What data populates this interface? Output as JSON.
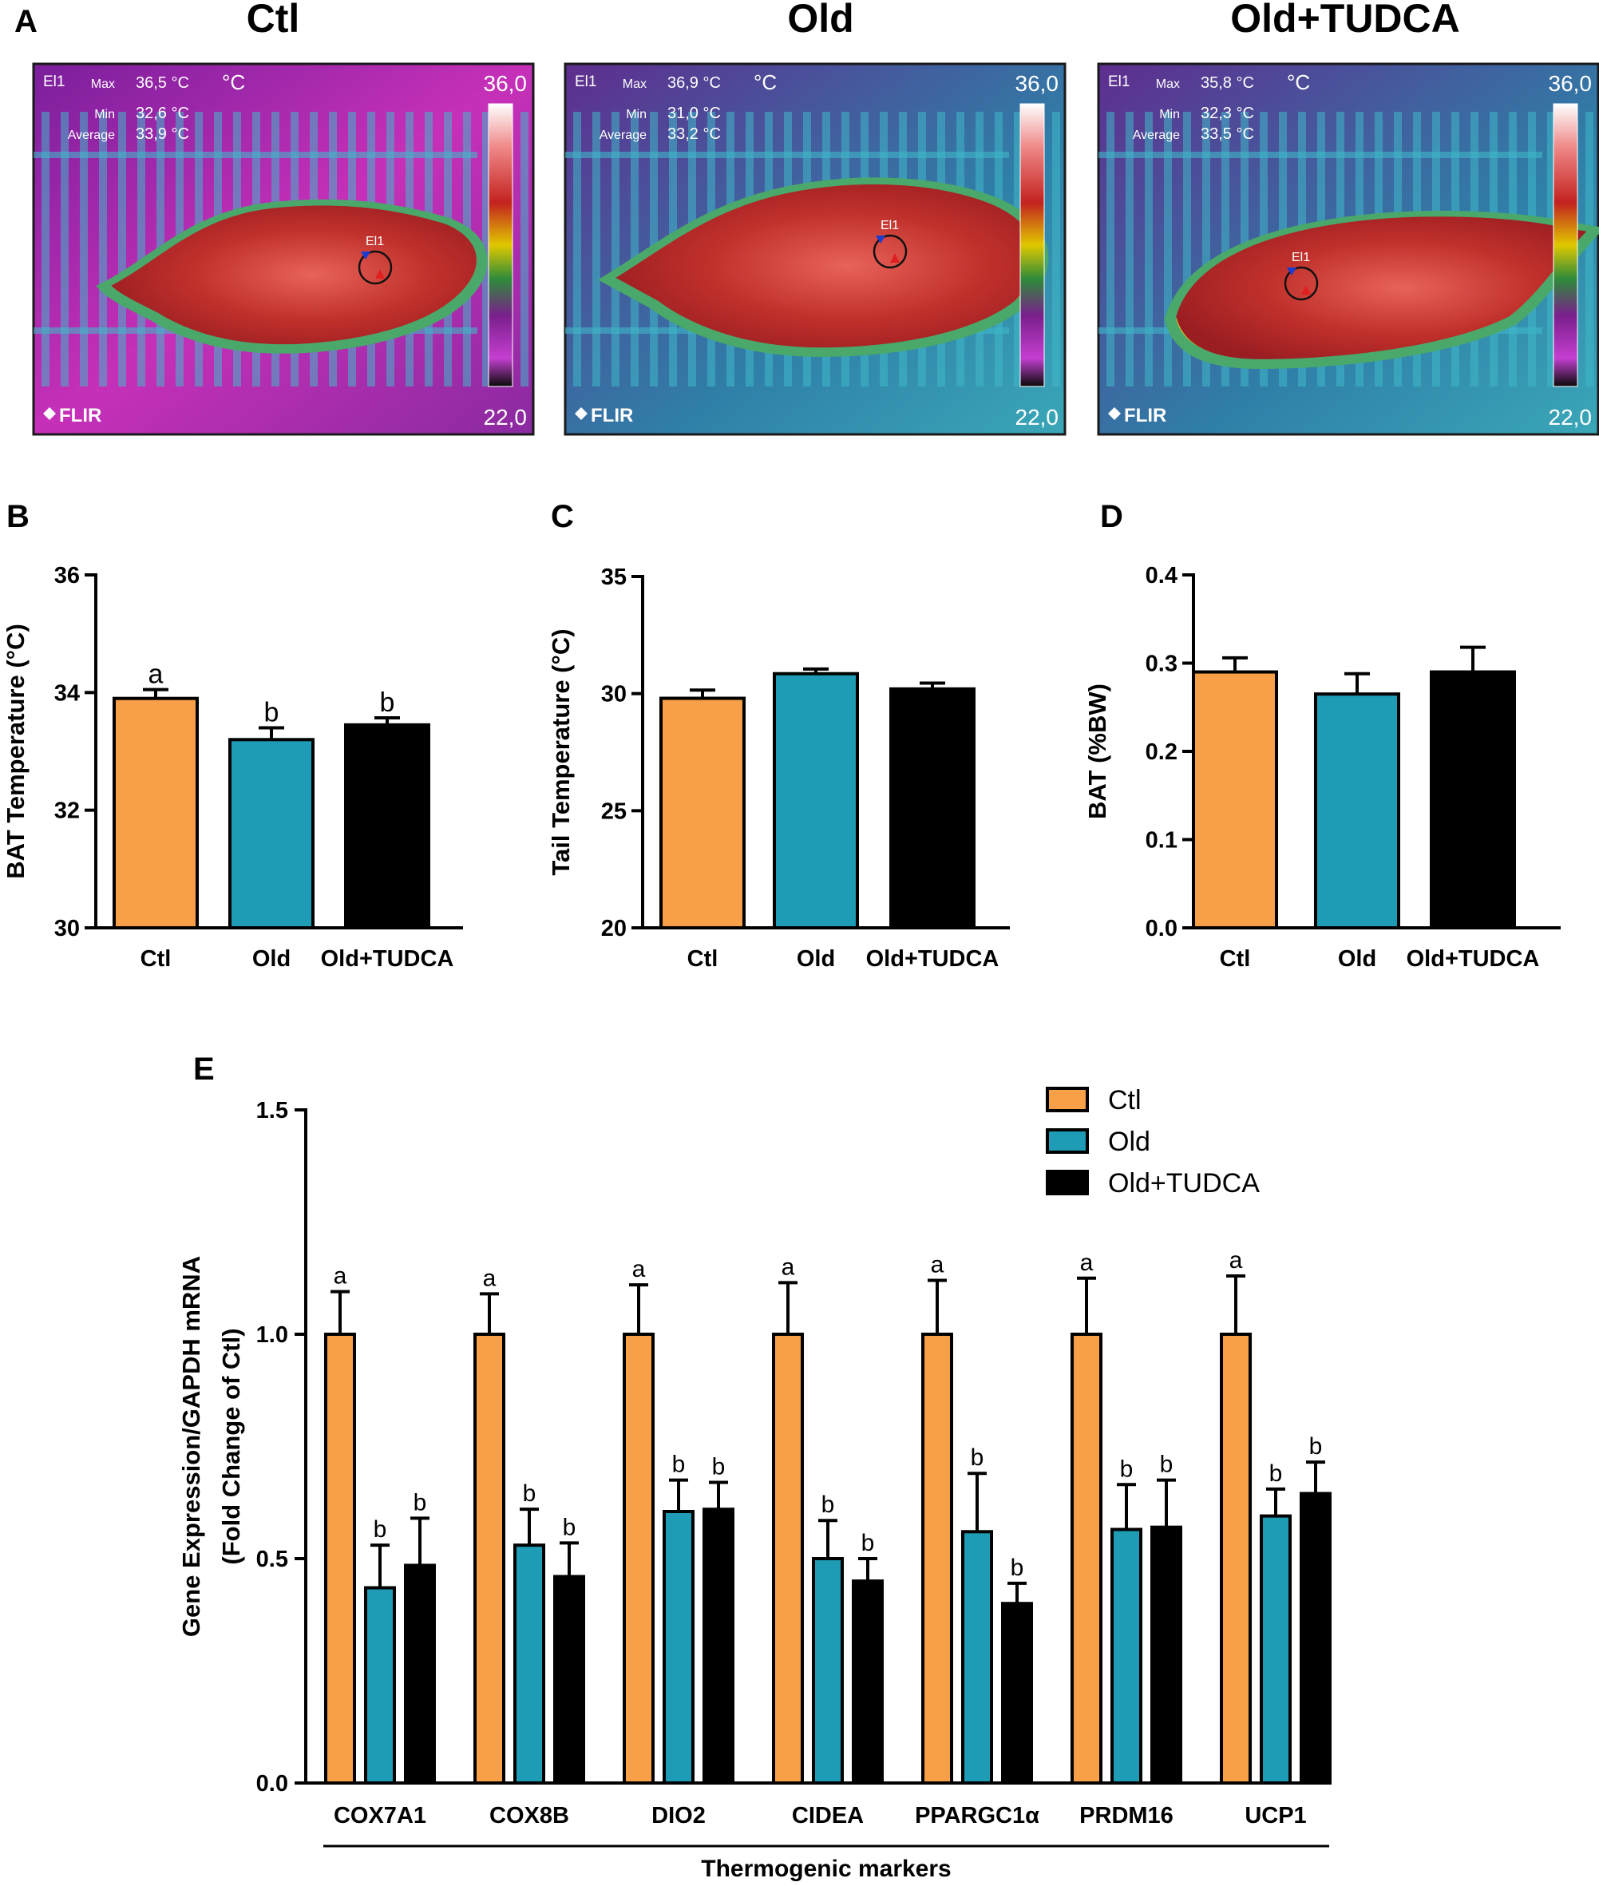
{
  "colors": {
    "ctl": "#F7A048",
    "old": "#1E9BB5",
    "old_tudca": "#000000",
    "axis": "#000000"
  },
  "panel_labels": {
    "a": "A",
    "b": "B",
    "c": "C",
    "d": "D",
    "e": "E"
  },
  "thermal": [
    {
      "title": "Ctl",
      "el": "El1",
      "max_label": "Max",
      "min_label": "Min",
      "avg_label": "Average",
      "max": "36,5 °C",
      "min": "32,6 °C",
      "avg": "33,9 °C",
      "unit": "°C",
      "scale_high": "36,0",
      "scale_low": "22,0",
      "logo": "FLIR",
      "spot": "El1"
    },
    {
      "title": "Old",
      "el": "El1",
      "max_label": "Max",
      "min_label": "Min",
      "avg_label": "Average",
      "max": "36,9 °C",
      "min": "31,0 °C",
      "avg": "33,2 °C",
      "unit": "°C",
      "scale_high": "36,0",
      "scale_low": "22,0",
      "logo": "FLIR",
      "spot": "El1"
    },
    {
      "title": "Old+TUDCA",
      "el": "El1",
      "max_label": "Max",
      "min_label": "Min",
      "avg_label": "Average",
      "max": "35,8 °C",
      "min": "32,3 °C",
      "avg": "33,5 °C",
      "unit": "°C",
      "scale_high": "36,0",
      "scale_low": "22,0",
      "logo": "FLIR",
      "spot": "El1"
    }
  ],
  "chart_data": [
    {
      "id": "B",
      "type": "bar",
      "categories": [
        "Ctl",
        "Old",
        "Old+TUDCA"
      ],
      "values": [
        33.9,
        33.2,
        33.45
      ],
      "errors": [
        0.15,
        0.2,
        0.12
      ],
      "letters": [
        "a",
        "b",
        "b"
      ],
      "ylabel": "BAT Temperature (°C)",
      "ylim": [
        30,
        36
      ],
      "yticks": [
        30,
        32,
        34,
        36
      ],
      "ytick_labels": [
        "30",
        "32",
        "34",
        "36"
      ]
    },
    {
      "id": "C",
      "type": "bar",
      "categories": [
        "Ctl",
        "Old",
        "Old+TUDCA"
      ],
      "values": [
        29.8,
        30.85,
        30.2
      ],
      "errors": [
        0.35,
        0.2,
        0.25
      ],
      "letters": [
        "",
        "",
        ""
      ],
      "ylabel": "Tail Temperature (°C)",
      "ylim": [
        20,
        35
      ],
      "yticks": [
        20,
        25,
        30,
        35
      ],
      "ytick_labels": [
        "20",
        "25",
        "30",
        "35"
      ]
    },
    {
      "id": "D",
      "type": "bar",
      "categories": [
        "Ctl",
        "Old",
        "Old+TUDCA"
      ],
      "values": [
        0.29,
        0.265,
        0.29
      ],
      "errors": [
        0.016,
        0.023,
        0.028
      ],
      "letters": [
        "",
        "",
        ""
      ],
      "ylabel": "BAT (%BW)",
      "ylim": [
        0,
        0.4
      ],
      "yticks": [
        0,
        0.1,
        0.2,
        0.3,
        0.4
      ],
      "ytick_labels": [
        "0.0",
        "0.1",
        "0.2",
        "0.3",
        "0.4"
      ]
    },
    {
      "id": "E",
      "type": "bar",
      "categories": [
        "COX7A1",
        "COX8B",
        "DIO2",
        "CIDEA",
        "PPARGC1α",
        "PRDM16",
        "UCP1"
      ],
      "series": [
        {
          "name": "Ctl",
          "values": [
            1.0,
            1.0,
            1.0,
            1.0,
            1.0,
            1.0,
            1.0
          ],
          "errors": [
            0.095,
            0.09,
            0.11,
            0.115,
            0.12,
            0.125,
            0.13
          ],
          "letters": [
            "a",
            "a",
            "a",
            "a",
            "a",
            "a",
            "a"
          ]
        },
        {
          "name": "Old",
          "values": [
            0.435,
            0.53,
            0.605,
            0.5,
            0.56,
            0.565,
            0.595
          ],
          "errors": [
            0.095,
            0.08,
            0.07,
            0.085,
            0.13,
            0.1,
            0.06
          ],
          "letters": [
            "b",
            "b",
            "b",
            "b",
            "b",
            "b",
            "b"
          ]
        },
        {
          "name": "Old+TUDCA",
          "values": [
            0.485,
            0.46,
            0.61,
            0.45,
            0.4,
            0.57,
            0.645
          ],
          "errors": [
            0.105,
            0.075,
            0.06,
            0.05,
            0.045,
            0.105,
            0.07
          ],
          "letters": [
            "b",
            "b",
            "b",
            "b",
            "b",
            "b",
            "b"
          ]
        }
      ],
      "ylabel_line1": "Gene Expression/GAPDH mRNA",
      "ylabel_line2": "(Fold Change of Ctl)",
      "xlabel": "Thermogenic markers",
      "ylim": [
        0,
        1.5
      ],
      "yticks": [
        0,
        0.5,
        1.0,
        1.5
      ],
      "ytick_labels": [
        "0.0",
        "0.5",
        "1.0",
        "1.5"
      ],
      "legend": [
        "Ctl",
        "Old",
        "Old+TUDCA"
      ],
      "legend_position": "top-right"
    }
  ]
}
